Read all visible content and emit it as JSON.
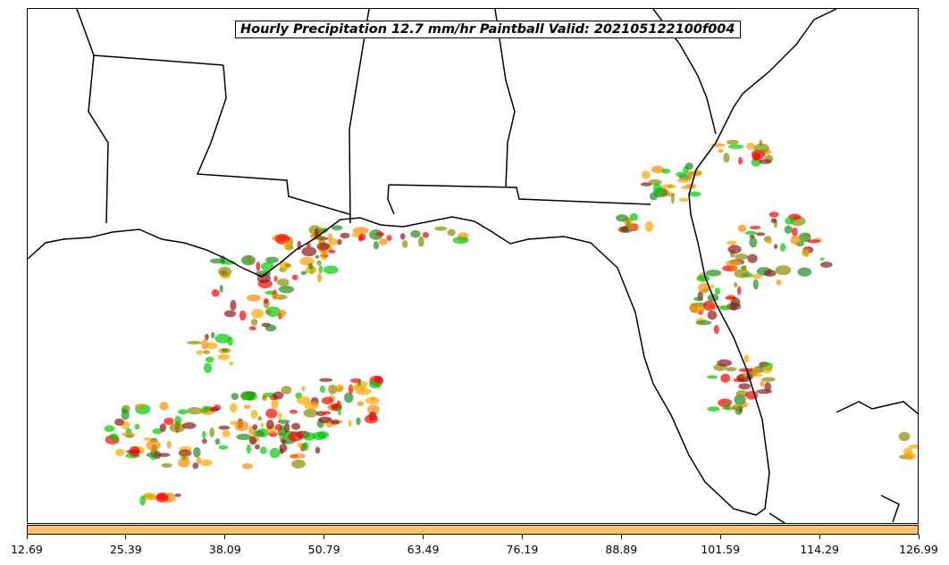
{
  "map": {
    "title": "Hourly Precipitation 12.7 mm/hr Paintball Valid: 202105122100f004",
    "colors": {
      "coast": "#000000",
      "ensemble": [
        "#00cc00",
        "#ff0000",
        "#ff8c00",
        "#8b1a1a",
        "#8b8b00",
        "#228b22",
        "#ffa500"
      ]
    }
  },
  "colorbar": {
    "color": "#ffc266",
    "ticks": [
      "12.69",
      "25.39",
      "38.09",
      "50.79",
      "63.49",
      "76.19",
      "88.89",
      "101.59",
      "114.29",
      "126.99"
    ]
  }
}
